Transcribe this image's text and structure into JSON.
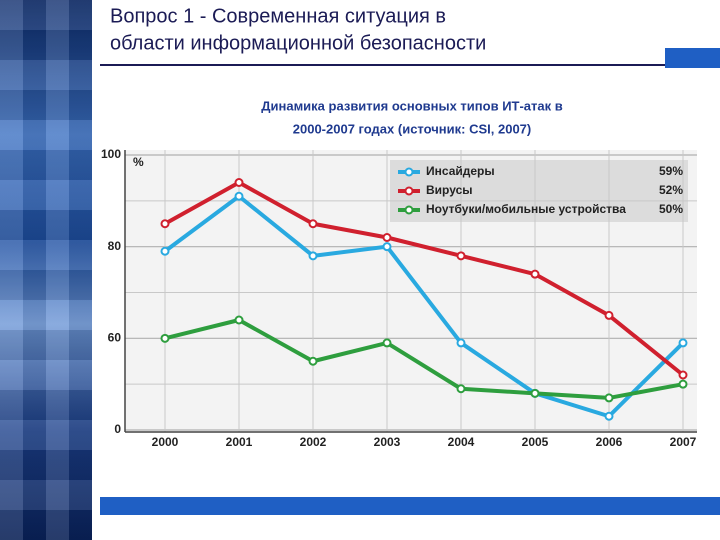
{
  "slide_title": [
    "Вопрос 1 - Современная ситуация в",
    "области информационной безопасности"
  ],
  "chart_data": {
    "type": "line",
    "title": [
      "Динамика развития основных типов ИТ-атак в",
      "2000-2007 годах (источник: CSI, 2007)"
    ],
    "y_unit": "%",
    "categories": [
      "2000",
      "2001",
      "2002",
      "2003",
      "2004",
      "2005",
      "2006",
      "2007"
    ],
    "ylim": [
      0,
      100
    ],
    "axis_break": [
      0,
      40
    ],
    "yticks": [
      0,
      60,
      80,
      100
    ],
    "minor_yticks": [
      50,
      70,
      90
    ],
    "grid": true,
    "series": [
      {
        "name": "Инсайдеры",
        "color": "#29a9e0",
        "legend_label": "59%",
        "values": [
          79,
          91,
          78,
          80,
          59,
          48,
          43,
          59
        ]
      },
      {
        "name": "Вирусы",
        "color": "#d0202e",
        "legend_label": "52%",
        "values": [
          85,
          94,
          85,
          82,
          78,
          74,
          65,
          52
        ]
      },
      {
        "name": "Ноутбуки/мобильные устройства",
        "color": "#2e9e3e",
        "legend_label": "50%",
        "values": [
          60,
          64,
          55,
          59,
          49,
          48,
          47,
          50
        ]
      }
    ]
  }
}
